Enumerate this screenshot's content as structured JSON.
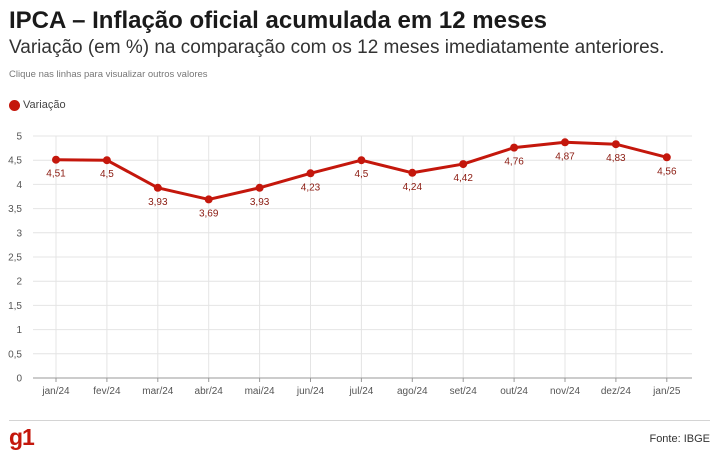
{
  "header": {
    "title": "IPCA – Inflação oficial acumulada em 12 meses",
    "subtitle": "Variação (em %) na comparação com os 12 meses imediatamente anteriores.",
    "hint": "Clique nas linhas para visualizar outros valores"
  },
  "footer": {
    "logo": "g1",
    "source": "Fonte: IBGE"
  },
  "colors": {
    "series": "#c4170c",
    "label": "#8b1a10",
    "grid": "#e4e4e4",
    "axis_text": "#555555"
  },
  "chart_data": {
    "type": "line",
    "categories": [
      "jan/24",
      "fev/24",
      "mar/24",
      "abr/24",
      "mai/24",
      "jun/24",
      "jul/24",
      "ago/24",
      "set/24",
      "out/24",
      "nov/24",
      "dez/24",
      "jan/25"
    ],
    "series": [
      {
        "name": "Variação",
        "values": [
          4.51,
          4.5,
          3.93,
          3.69,
          3.93,
          4.23,
          4.5,
          4.24,
          4.42,
          4.76,
          4.87,
          4.83,
          4.56
        ],
        "labels": [
          "4,51",
          "4,5",
          "3,93",
          "3,69",
          "3,93",
          "4,23",
          "4,5",
          "4,24",
          "4,42",
          "4,76",
          "4,87",
          "4,83",
          "4,56"
        ]
      }
    ],
    "ylim": [
      0,
      5
    ],
    "yticks": [
      "0",
      "0,5",
      "1",
      "1,5",
      "2",
      "2,5",
      "3",
      "3,5",
      "4",
      "4,5",
      "5"
    ],
    "grid": true,
    "legend_position": "top-left"
  }
}
